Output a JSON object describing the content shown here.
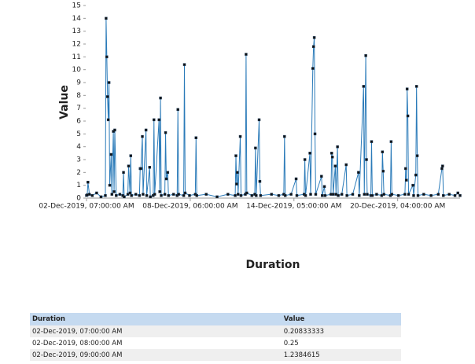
{
  "chart_data": {
    "type": "line",
    "y_label": "Value",
    "x_label": "Duration",
    "xlim": [
      0,
      515
    ],
    "xticks": [
      {
        "value": 0,
        "label": "02-Dec-2019, 07:00:00 AM"
      },
      {
        "value": 143,
        "label": "08-Dec-2019, 06:00:00 AM"
      },
      {
        "value": 286,
        "label": "14-Dec-2019, 05:00:00 AM"
      },
      {
        "value": 429,
        "label": "20-Dec-2019, 04:00:00 AM"
      }
    ],
    "ylim": [
      0,
      15
    ],
    "yticks": [
      0,
      1,
      2,
      3,
      4,
      5,
      6,
      7,
      8,
      9,
      10,
      11,
      12,
      13,
      14,
      15
    ],
    "series": [
      {
        "color": "#2b7bb9",
        "x": [
          0,
          1,
          2,
          4,
          8,
          14,
          20,
          26,
          27,
          28,
          29,
          30,
          31,
          32,
          34,
          35,
          37,
          38,
          39,
          41,
          46,
          50,
          51,
          52,
          57,
          58,
          60,
          61,
          62,
          68,
          73,
          74,
          75,
          77,
          78,
          82,
          83,
          87,
          88,
          92,
          93,
          94,
          100,
          101,
          102,
          103,
          108,
          109,
          110,
          112,
          113,
          120,
          125,
          126,
          127,
          134,
          135,
          136,
          142,
          150,
          151,
          152,
          165,
          180,
          195,
          205,
          206,
          207,
          208,
          209,
          212,
          213,
          219,
          220,
          221,
          228,
          232,
          233,
          234,
          238,
          239,
          240,
          255,
          265,
          272,
          273,
          274,
          282,
          289,
          290,
          300,
          301,
          302,
          308,
          309,
          312,
          313,
          314,
          315,
          316,
          324,
          325,
          328,
          329,
          337,
          338,
          339,
          340,
          343,
          344,
          346,
          347,
          352,
          358,
          359,
          367,
          375,
          376,
          382,
          383,
          385,
          386,
          387,
          392,
          393,
          394,
          400,
          407,
          408,
          409,
          410,
          419,
          420,
          421,
          430,
          439,
          440,
          441,
          442,
          443,
          444,
          450,
          451,
          454,
          455,
          456,
          457,
          465,
          475,
          485,
          490,
          491,
          492,
          500,
          508,
          512,
          515
        ],
        "values": [
          0.20833333,
          0.25,
          1.2384615,
          0.3,
          0.2,
          0.4,
          0.1,
          0.2,
          14.0,
          11.0,
          7.9,
          6.1,
          9.0,
          1.0,
          3.4,
          0.3,
          5.2,
          0.5,
          5.3,
          0.2,
          0.3,
          0.2,
          2.0,
          0.1,
          0.3,
          2.5,
          0.4,
          3.3,
          0.2,
          0.3,
          0.2,
          2.3,
          2.3,
          4.8,
          0.3,
          5.3,
          0.2,
          2.4,
          0.1,
          0.2,
          6.1,
          0.3,
          6.1,
          0.5,
          7.8,
          0.2,
          0.3,
          5.1,
          1.5,
          2.0,
          0.2,
          0.3,
          0.2,
          6.9,
          0.3,
          0.2,
          10.4,
          0.4,
          0.2,
          0.3,
          4.7,
          0.2,
          0.3,
          0.1,
          0.3,
          0.2,
          3.3,
          1.1,
          2.0,
          0.3,
          4.8,
          0.2,
          0.3,
          11.2,
          0.4,
          0.2,
          0.3,
          3.9,
          0.2,
          6.1,
          1.3,
          0.2,
          0.3,
          0.2,
          0.3,
          4.8,
          0.2,
          0.3,
          1.5,
          0.2,
          0.3,
          3.0,
          0.2,
          3.5,
          0.3,
          10.1,
          11.8,
          12.5,
          5.0,
          0.3,
          1.7,
          0.2,
          0.9,
          0.2,
          0.3,
          3.5,
          3.2,
          0.3,
          2.5,
          0.3,
          4.0,
          0.2,
          0.3,
          2.6,
          0.2,
          0.3,
          2.0,
          0.2,
          8.7,
          0.3,
          11.1,
          3.0,
          0.3,
          0.2,
          4.4,
          0.2,
          0.3,
          0.2,
          3.6,
          2.1,
          0.3,
          0.2,
          4.4,
          0.3,
          0.2,
          0.3,
          2.3,
          1.4,
          8.5,
          6.4,
          0.3,
          1.0,
          0.2,
          1.8,
          8.7,
          3.3,
          0.2,
          0.3,
          0.2,
          0.3,
          2.3,
          2.5,
          0.2,
          0.3,
          0.2,
          0.4,
          0.2
        ]
      }
    ]
  },
  "table": {
    "header": [
      "Duration",
      "Value"
    ],
    "rows": [
      [
        "02-Dec-2019, 07:00:00 AM",
        "0.20833333"
      ],
      [
        "02-Dec-2019, 08:00:00 AM",
        "0.25"
      ],
      [
        "02-Dec-2019, 09:00:00 AM",
        "1.2384615"
      ]
    ]
  }
}
